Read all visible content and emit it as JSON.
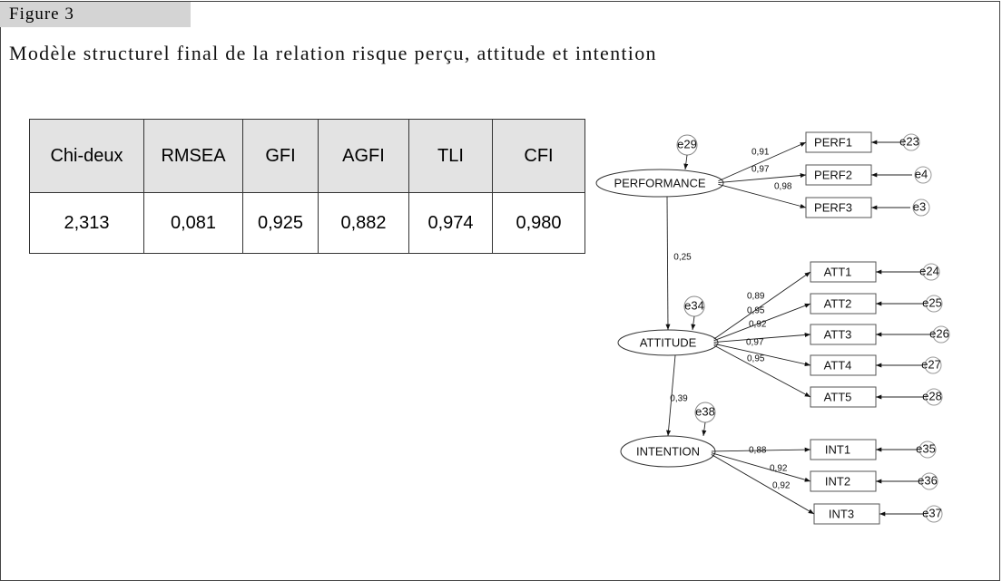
{
  "figure_label": "Figure 3",
  "title": "Modèle structurel final de la relation risque perçu, attitude et intention",
  "table": {
    "header": [
      "Chi-deux",
      "RMSEA",
      "GFI",
      "AGFI",
      "TLI",
      "CFI"
    ],
    "rows": [
      [
        "2,313",
        "0,081",
        "0,925",
        "0,882",
        "0,974",
        "0,980"
      ]
    ]
  },
  "diagram": {
    "constructs": [
      {
        "label": "PERFORMANCE",
        "error": "e29",
        "indicators": [
          {
            "label": "PERF1",
            "loading": "0,91",
            "error": "e23"
          },
          {
            "label": "PERF2",
            "loading": "0,97",
            "error": "e4"
          },
          {
            "label": "PERF3",
            "loading": "0,98",
            "error": "e3"
          }
        ]
      },
      {
        "label": "ATTITUDE",
        "error": "e34",
        "indicators": [
          {
            "label": "ATT1",
            "loading": "0,89",
            "error": "e24"
          },
          {
            "label": "ATT2",
            "loading": "0,95",
            "error": "e25"
          },
          {
            "label": "ATT3",
            "loading": "0,92",
            "error": "e26"
          },
          {
            "label": "ATT4",
            "loading": "0,97",
            "error": "e27"
          },
          {
            "label": "ATT5",
            "loading": "0,95",
            "error": "e28"
          }
        ]
      },
      {
        "label": "INTENTION",
        "error": "e38",
        "indicators": [
          {
            "label": "INT1",
            "loading": "0,88",
            "error": "e35"
          },
          {
            "label": "INT2",
            "loading": "0,92",
            "error": "e36"
          },
          {
            "label": "INT3",
            "loading": "0,92",
            "error": "e37"
          }
        ]
      }
    ],
    "structural_paths": [
      "0,25",
      "0,39"
    ]
  }
}
